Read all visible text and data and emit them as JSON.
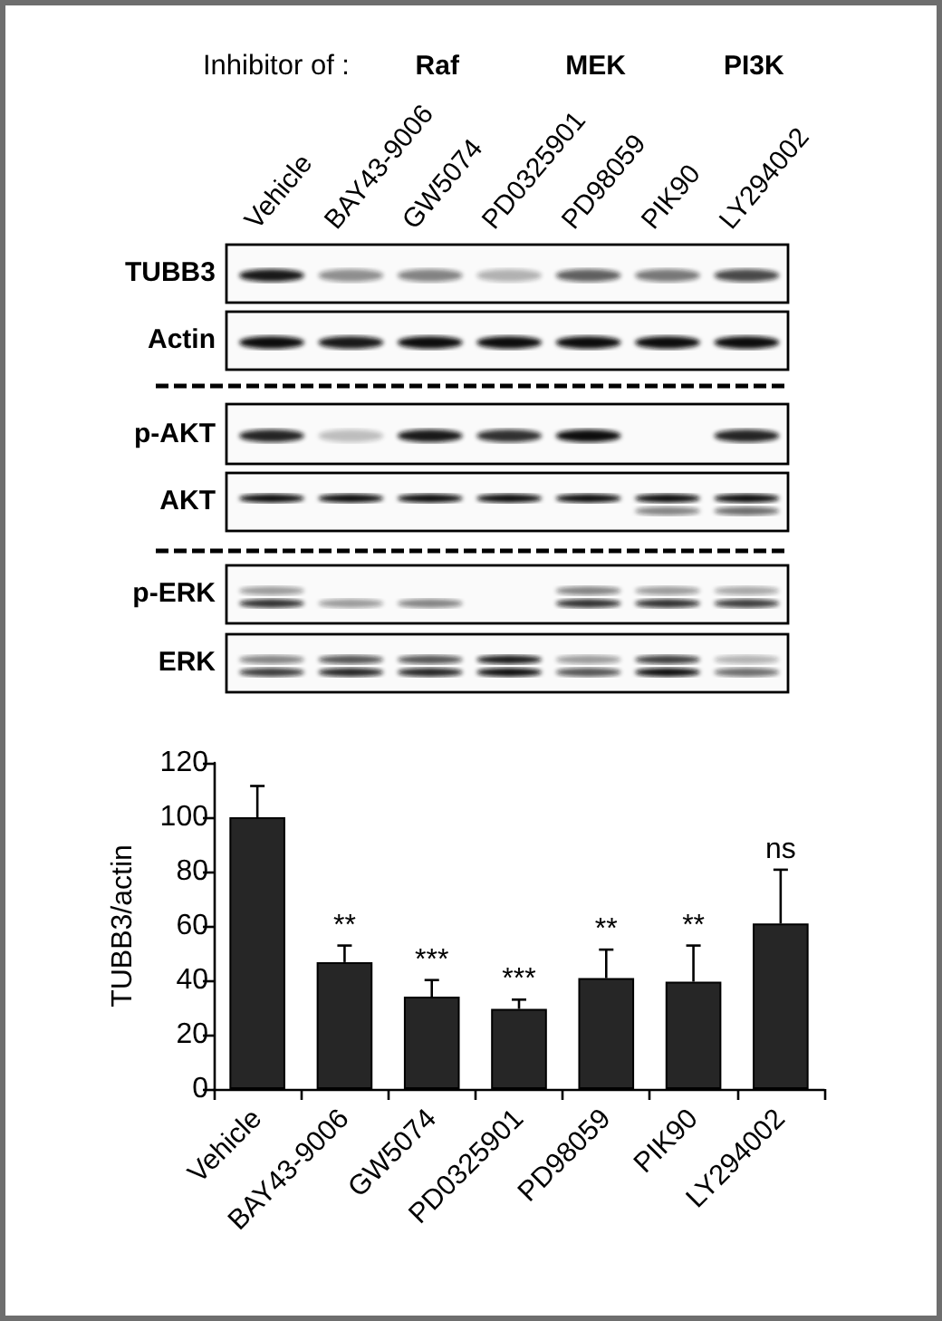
{
  "chart_data": {
    "type": "bar",
    "categories": [
      "Vehicle",
      "BAY43-9006",
      "GW5074",
      "PD0325901",
      "PD98059",
      "PIK90",
      "LY294002"
    ],
    "values": [
      100,
      46.7,
      34,
      29.5,
      40.8,
      39.5,
      60.9
    ],
    "errors": [
      [
        100,
        111.5
      ],
      [
        46.7,
        52.8
      ],
      [
        34,
        40.1
      ],
      [
        29.5,
        32.9
      ],
      [
        40.8,
        51.3
      ],
      [
        39.5,
        52.8
      ],
      [
        60.9,
        80.7
      ]
    ],
    "color": "#262626",
    "ylabel": "TUBB3/actin",
    "ylim": [
      0,
      120
    ],
    "yticks": [
      0,
      20,
      40,
      60,
      80,
      100,
      120
    ],
    "annotations": [
      "Inhibitor of :",
      "Raf",
      "MEK",
      "PI3K",
      "TUBB3",
      "Actin",
      "p-AKT",
      "AKT",
      "p-ERK",
      "ERK",
      {
        "text": "**",
        "x": "BAY43-9006",
        "y": 46.7
      },
      {
        "text": "***",
        "x": "GW5074",
        "y": 34
      },
      {
        "text": "***",
        "x": "PD0325901",
        "y": 29.5
      },
      {
        "text": "**",
        "x": "PD98059",
        "y": 40.8
      },
      {
        "text": "**",
        "x": "PIK90",
        "y": 39.5
      },
      {
        "text": "ns",
        "x": "LY294002",
        "y": 60.9
      }
    ]
  }
}
